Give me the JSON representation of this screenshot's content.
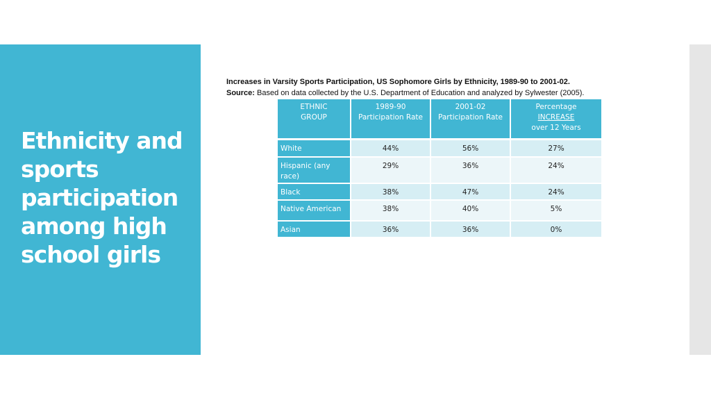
{
  "slide": {
    "title": "Ethnicity and sports participation among high school girls"
  },
  "caption": {
    "line1": "Increases in Varsity Sports Participation, US Sophomore Girls by Ethnicity, 1989-90 to 2001-02.",
    "source_label": "Source:",
    "source_text": " Based on data collected by the U.S. Department of Education and analyzed by Sylwester (2005)."
  },
  "table": {
    "headers": [
      {
        "line1": "ETHNIC",
        "line2": "GROUP"
      },
      {
        "line1": "1989-90",
        "line2": "Participation Rate"
      },
      {
        "line1": "2001-02",
        "line2": "Participation Rate"
      },
      {
        "line1": "Percentage",
        "line2": "INCREASE",
        "line3": "over 12 Years"
      }
    ],
    "rows": [
      {
        "group": "White",
        "r1989": "44%",
        "r2001": "56%",
        "increase": "27%"
      },
      {
        "group": "Hispanic (any race)",
        "r1989": "29%",
        "r2001": "36%",
        "increase": "24%"
      },
      {
        "group": "Black",
        "r1989": "38%",
        "r2001": "47%",
        "increase": "24%"
      },
      {
        "group": "Native American",
        "r1989": "38%",
        "r2001": "40%",
        "increase": "5%"
      },
      {
        "group": "Asian",
        "r1989": "36%",
        "r2001": "36%",
        "increase": "0%"
      }
    ]
  },
  "colors": {
    "accent": "#41b6d3",
    "row_light": "#d6eef4",
    "row_lighter": "#ecf6f9"
  }
}
